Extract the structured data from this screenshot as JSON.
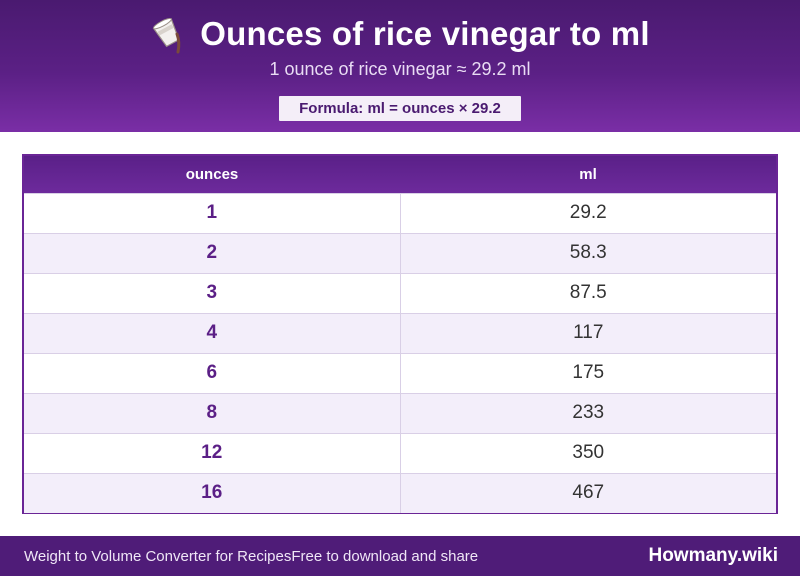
{
  "header": {
    "title": "Ounces of rice vinegar to ml",
    "subtitle": "1 ounce of rice vinegar ≈ 29.2 ml",
    "formula": "Formula: ml = ounces × 29.2",
    "icon": "pouring-cup-icon"
  },
  "table": {
    "columns": [
      "ounces",
      "ml"
    ],
    "rows": [
      {
        "ounces": "1",
        "ml": "29.2"
      },
      {
        "ounces": "2",
        "ml": "58.3"
      },
      {
        "ounces": "3",
        "ml": "87.5"
      },
      {
        "ounces": "4",
        "ml": "117"
      },
      {
        "ounces": "6",
        "ml": "175"
      },
      {
        "ounces": "8",
        "ml": "233"
      },
      {
        "ounces": "12",
        "ml": "350"
      },
      {
        "ounces": "16",
        "ml": "467"
      }
    ]
  },
  "footer": {
    "left_text": "Weight to Volume Converter for RecipesFree to download and share",
    "brand": "Howmany.wiki"
  },
  "colors": {
    "primary": "#5b2085",
    "row_alt": "#f3eefa",
    "accent_text": "#5b1f86"
  }
}
